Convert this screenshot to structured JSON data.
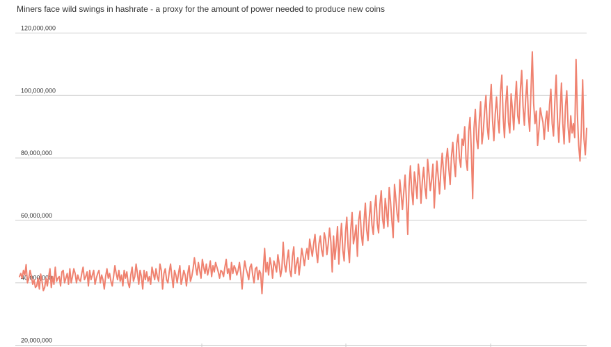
{
  "title": "Miners face wild swings in hashrate - a proxy for the amount of power needed to produce new coins",
  "colors": {
    "line": "#ef8270",
    "grid": "#cccccc",
    "text": "#333333",
    "background": "#ffffff"
  },
  "chart_data": {
    "type": "line",
    "title": "Miners face wild swings in hashrate - a proxy for the amount of power needed to produce new coins",
    "xlabel": "",
    "ylabel": "",
    "ylim": [
      20000000,
      120000000
    ],
    "y_ticks": [
      "20,000,000",
      "40,000,000",
      "60,000,000",
      "80,000,000",
      "100,000,000",
      "120,000,000"
    ],
    "y_tick_values": [
      20000000,
      40000000,
      60000000,
      80000000,
      100000000,
      120000000
    ],
    "grid": true,
    "legend": "none",
    "series": [
      {
        "values": [
          42000000,
          43000000,
          41500000,
          44000000,
          42500000,
          45800000,
          40000000,
          41500000,
          44000000,
          42000000,
          39500000,
          41000000,
          38500000,
          39000000,
          41500000,
          38000000,
          42800000,
          40500000,
          37500000,
          38500000,
          41500000,
          39000000,
          42000000,
          44500000,
          38500000,
          42000000,
          39500000,
          45000000,
          40500000,
          41500000,
          42000000,
          39000000,
          43500000,
          44000000,
          40000000,
          41500000,
          43000000,
          39500000,
          44500000,
          40000000,
          42000000,
          44500000,
          43000000,
          40000000,
          42500000,
          41000000,
          40500000,
          43000000,
          45000000,
          41000000,
          42000000,
          43500000,
          39000000,
          44000000,
          41000000,
          42500000,
          44000000,
          39500000,
          41500000,
          43000000,
          44000000,
          40000000,
          42500000,
          41000000,
          38000000,
          42000000,
          44500000,
          41500000,
          43000000,
          40500000,
          39000000,
          42000000,
          45500000,
          43000000,
          41000000,
          44000000,
          40500000,
          42500000,
          39000000,
          44000000,
          41500000,
          43500000,
          40000000,
          38500000,
          42500000,
          45000000,
          40500000,
          42000000,
          46000000,
          43000000,
          39500000,
          44000000,
          42000000,
          38000000,
          44000000,
          41000000,
          43500000,
          40500000,
          42000000,
          39500000,
          45000000,
          43000000,
          41000000,
          44500000,
          42000000,
          40500000,
          46000000,
          44000000,
          38000000,
          43000000,
          44500000,
          41000000,
          40000000,
          43500000,
          46000000,
          42000000,
          38500000,
          44000000,
          42500000,
          40000000,
          43000000,
          45500000,
          39500000,
          41500000,
          44000000,
          42500000,
          39000000,
          43000000,
          45500000,
          40500000,
          42000000,
          44500000,
          48000000,
          45000000,
          42500000,
          46500000,
          44000000,
          41500000,
          47500000,
          45000000,
          43000000,
          46000000,
          42500000,
          44500000,
          47000000,
          42000000,
          45500000,
          43500000,
          46500000,
          45000000,
          43500000,
          41500000,
          44000000,
          43500000,
          42000000,
          45000000,
          47500000,
          43000000,
          44500000,
          41000000,
          46500000,
          43000000,
          45500000,
          44500000,
          42500000,
          44000000,
          46500000,
          43000000,
          38000000,
          43500000,
          47000000,
          44500000,
          43000000,
          41000000,
          45000000,
          46000000,
          42500000,
          40000000,
          44500000,
          45000000,
          41000000,
          44000000,
          43000000,
          36500000,
          44000000,
          51000000,
          43500000,
          46500000,
          42500000,
          48000000,
          45500000,
          41500000,
          47000000,
          45500000,
          43500000,
          49000000,
          46000000,
          42000000,
          44500000,
          53000000,
          46000000,
          43500000,
          47500000,
          50500000,
          44000000,
          42000000,
          48500000,
          51500000,
          43000000,
          46000000,
          48000000,
          42500000,
          46500000,
          51000000,
          48500000,
          45500000,
          49000000,
          51000000,
          47500000,
          54000000,
          51000000,
          48500000,
          52500000,
          55500000,
          50000000,
          46500000,
          52500000,
          55000000,
          50500000,
          48500000,
          56000000,
          54000000,
          49000000,
          52500000,
          57500000,
          53000000,
          43500000,
          55000000,
          47500000,
          52000000,
          58000000,
          46000000,
          53500000,
          59000000,
          50500000,
          47000000,
          56000000,
          61000000,
          51500000,
          46500000,
          57000000,
          62500000,
          52500000,
          55000000,
          58500000,
          48500000,
          60000000,
          63000000,
          55500000,
          52000000,
          59500000,
          65500000,
          57000000,
          53500000,
          61000000,
          66000000,
          58500000,
          55500000,
          63500000,
          68000000,
          59000000,
          56000000,
          65000000,
          69500000,
          60500000,
          57500000,
          67000000,
          63000000,
          58000000,
          70500000,
          66000000,
          60000000,
          54500000,
          71500000,
          67000000,
          62000000,
          59500000,
          73000000,
          68500000,
          63500000,
          69000000,
          74500000,
          66500000,
          55500000,
          71000000,
          77500000,
          69500000,
          65000000,
          75500000,
          72000000,
          67000000,
          78000000,
          74000000,
          65500000,
          72500000,
          77000000,
          70500000,
          67000000,
          79500000,
          75000000,
          69500000,
          73000000,
          78000000,
          64000000,
          72500000,
          79000000,
          74000000,
          68500000,
          76000000,
          81500000,
          75500000,
          70000000,
          79500000,
          83000000,
          76500000,
          71500000,
          80500000,
          85000000,
          78500000,
          74000000,
          84500000,
          87500000,
          80000000,
          77000000,
          86000000,
          84000000,
          90000000,
          79500000,
          76000000,
          88500000,
          93000000,
          82000000,
          67000000,
          89500000,
          95500000,
          86000000,
          83000000,
          92000000,
          98000000,
          84500000,
          88500000,
          95000000,
          100000000,
          90000000,
          86000000,
          97000000,
          103500000,
          92000000,
          85500000,
          94000000,
          99500000,
          92500000,
          88000000,
          101000000,
          106500000,
          93000000,
          86500000,
          97500000,
          103000000,
          91500000,
          88000000,
          100500000,
          95500000,
          89000000,
          98000000,
          104500000,
          93500000,
          91000000,
          102000000,
          108000000,
          96500000,
          90500000,
          99000000,
          105000000,
          94000000,
          88500000,
          101500000,
          114000000,
          97500000,
          91000000,
          95000000,
          84000000,
          89000000,
          96000000,
          93500000,
          91500000,
          86000000,
          92000000,
          95000000,
          88500000,
          97000000,
          102000000,
          91000000,
          87000000,
          98000000,
          106500000,
          92500000,
          85000000,
          95000000,
          104000000,
          91000000,
          84500000,
          96500000,
          101500000,
          90000000,
          85000000,
          93500000,
          88000000,
          91000000,
          86500000,
          111500000,
          94000000,
          84000000,
          79000000,
          89000000,
          105000000,
          86000000,
          81000000,
          89500000
        ]
      }
    ]
  }
}
